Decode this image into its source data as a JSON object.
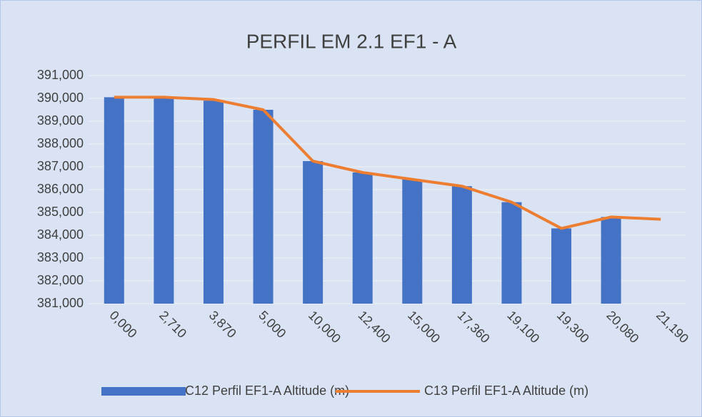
{
  "chart_data": {
    "type": "bar",
    "title": "PERFIL EM 2.1 EF1 - A",
    "categories": [
      "0,000",
      "2,710",
      "3,870",
      "5,000",
      "10,000",
      "12,400",
      "15,000",
      "17,360",
      "19,100",
      "19,300",
      "20,080",
      "21,190"
    ],
    "series": [
      {
        "name": "C12 Perfil EF1-A Altitude (m)",
        "type": "bar",
        "color": "#4472c4",
        "values": [
          390.05,
          390.0,
          389.9,
          389.5,
          387.25,
          386.75,
          386.45,
          386.15,
          385.45,
          384.3,
          384.8,
          null
        ]
      },
      {
        "name": "C13 Perfil EF1-A Altitude (m)",
        "type": "line",
        "color": "#ed7d31",
        "values": [
          390.05,
          390.05,
          389.95,
          389.5,
          387.25,
          386.75,
          386.45,
          386.15,
          385.45,
          384.3,
          384.8,
          384.7
        ]
      }
    ],
    "ylim": [
      381,
      391
    ],
    "yticks": [
      {
        "value": 381,
        "label": "381,000"
      },
      {
        "value": 382,
        "label": "382,000"
      },
      {
        "value": 383,
        "label": "383,000"
      },
      {
        "value": 384,
        "label": "384,000"
      },
      {
        "value": 385,
        "label": "385,000"
      },
      {
        "value": 386,
        "label": "386,000"
      },
      {
        "value": 387,
        "label": "387,000"
      },
      {
        "value": 388,
        "label": "388,000"
      },
      {
        "value": 389,
        "label": "389,000"
      },
      {
        "value": 390,
        "label": "390,000"
      },
      {
        "value": 391,
        "label": "391,000"
      }
    ],
    "grid": true,
    "legend": "bottom"
  }
}
